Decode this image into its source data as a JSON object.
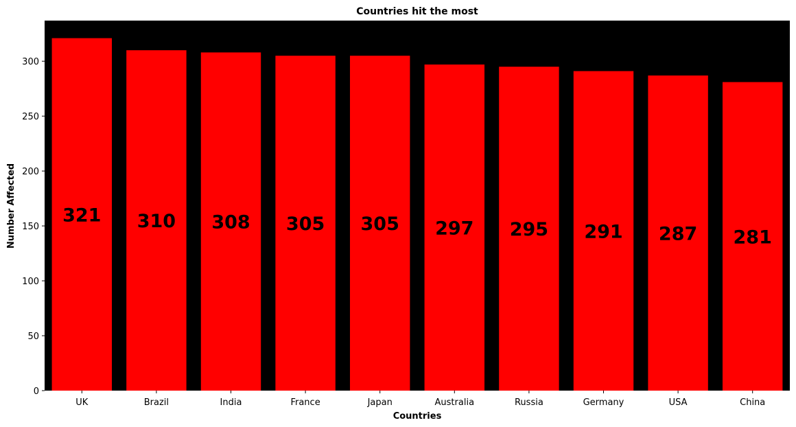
{
  "chart_data": {
    "type": "bar",
    "title": "Countries hit the most",
    "xlabel": "Countries",
    "ylabel": "Number Affected",
    "categories": [
      "UK",
      "Brazil",
      "India",
      "France",
      "Japan",
      "Australia",
      "Russia",
      "Germany",
      "USA",
      "China"
    ],
    "values": [
      321,
      310,
      308,
      305,
      305,
      297,
      295,
      291,
      287,
      281
    ],
    "ylim": [
      0,
      337
    ],
    "yticks": [
      0,
      50,
      100,
      150,
      200,
      250,
      300
    ],
    "grid": false,
    "legend": "none",
    "data_labels": "bar centers",
    "colors": {
      "bar": "#ff0000",
      "plot_background": "#000000",
      "label_text": "#000000"
    }
  }
}
